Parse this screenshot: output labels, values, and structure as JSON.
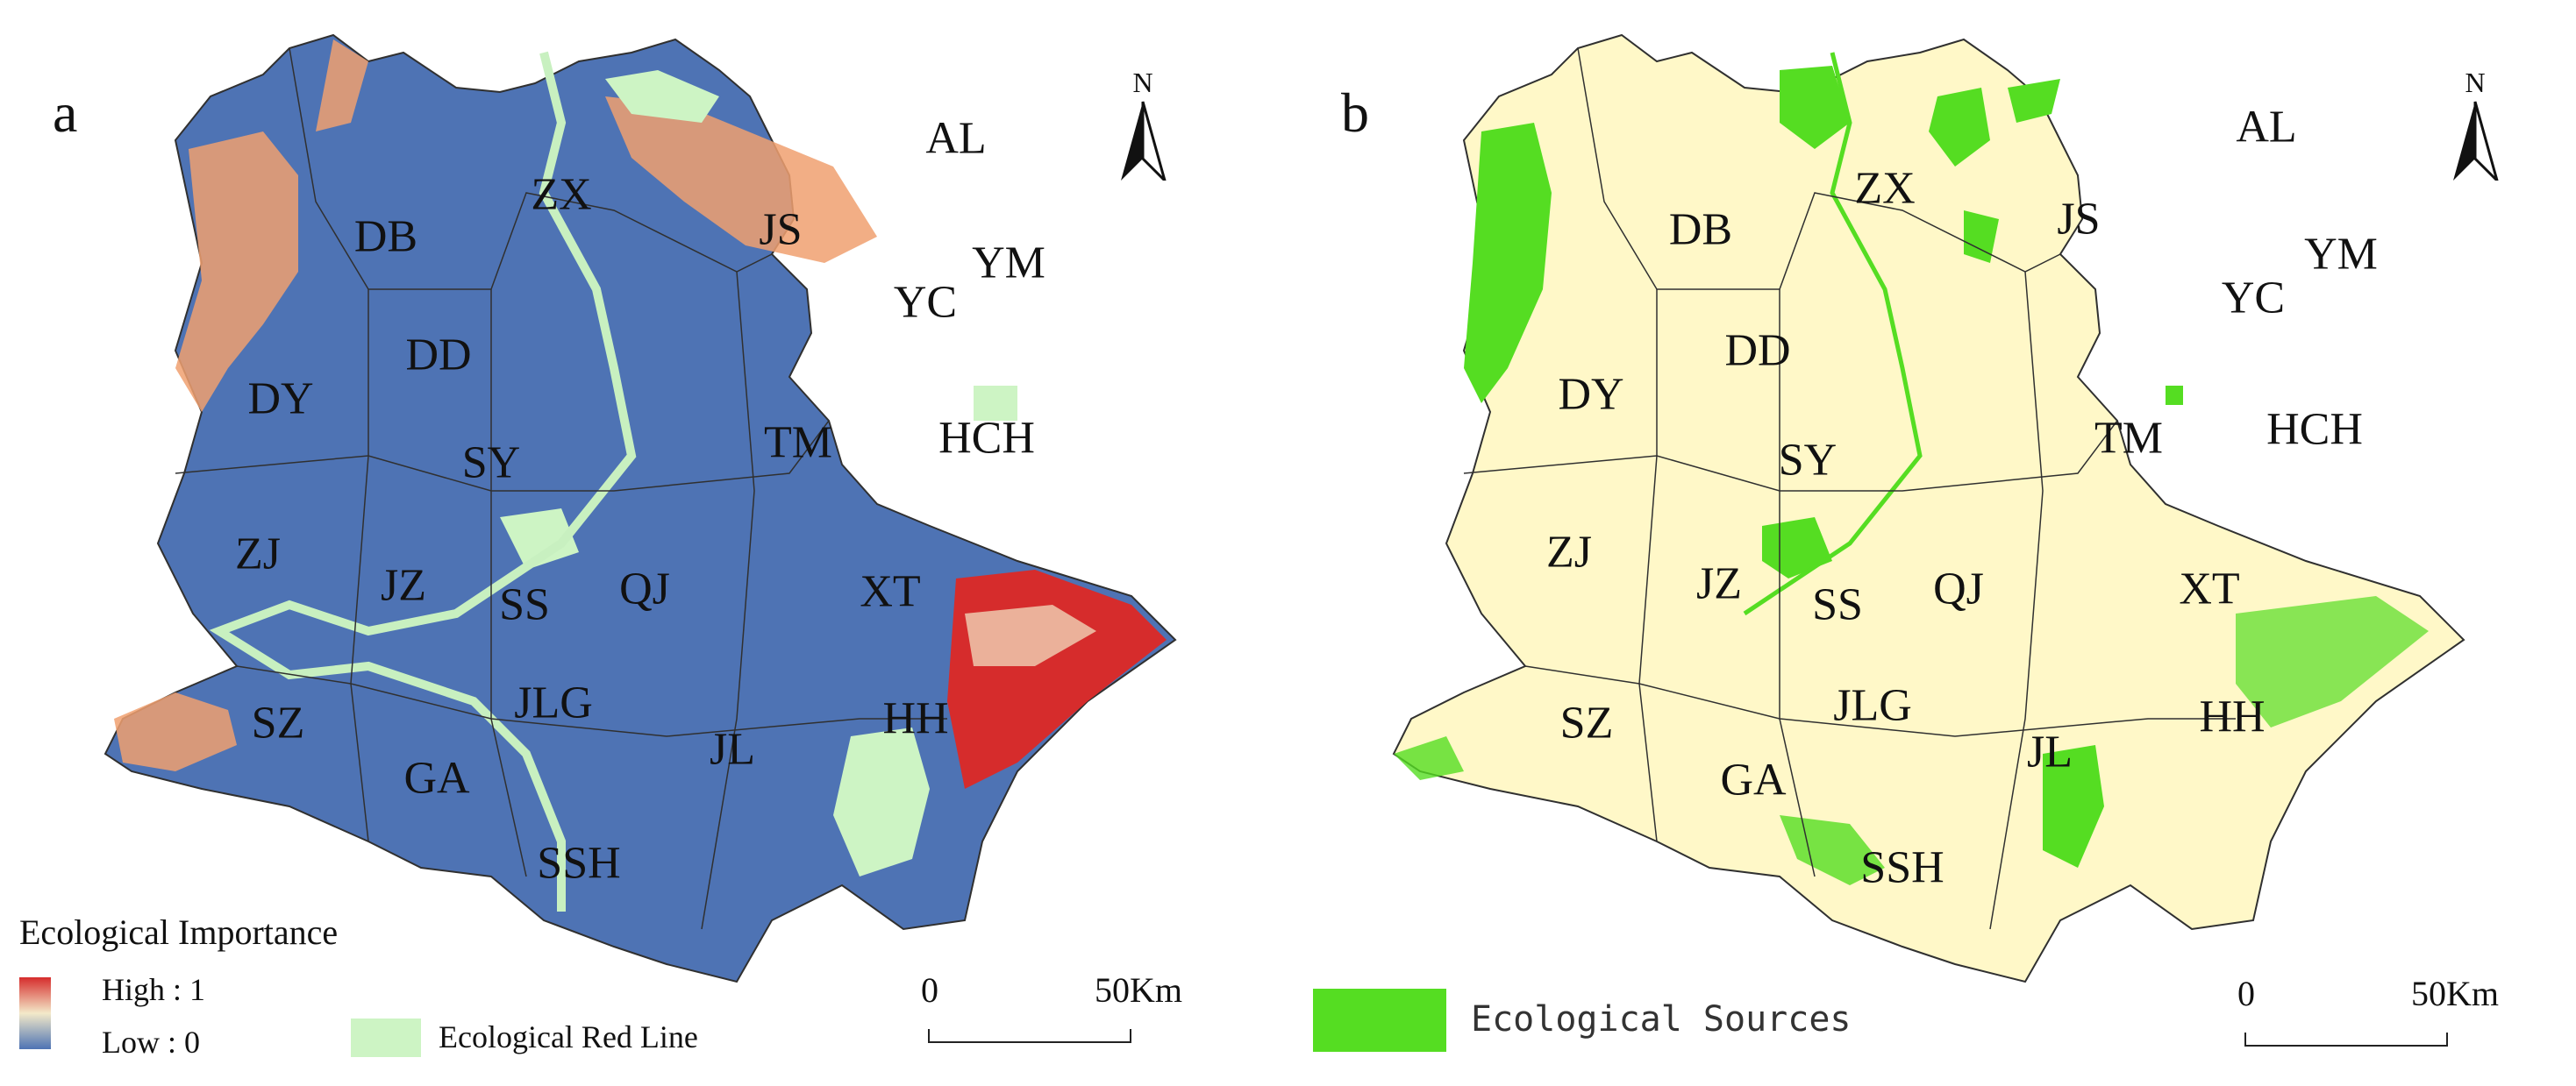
{
  "colors": {
    "importance_high": "#d62c2c",
    "importance_mid": "#f3e9c9",
    "importance_low": "#4e73b4",
    "orange_patch": "#f0a070",
    "red_line": "#cdf4c4",
    "sources": "#55dd22",
    "base_b": "#fff8c8",
    "boundary": "#303030",
    "river": "#c8f0c0"
  },
  "panel_a": {
    "letter": "a",
    "north_label": "N",
    "legend": {
      "title": "Ecological Importance",
      "high_label": "High : 1",
      "low_label": "Low : 0",
      "red_line_label": "Ecological Red Line"
    },
    "scale": {
      "zero": "0",
      "max": "50",
      "unit": "Km"
    },
    "regions": [
      "ZX",
      "JS",
      "AL",
      "DB",
      "YM",
      "YC",
      "DD",
      "DY",
      "TM",
      "HCH",
      "SY",
      "ZJ",
      "JZ",
      "SS",
      "QJ",
      "XT",
      "SZ",
      "JLG",
      "HH",
      "JL",
      "GA",
      "SSH"
    ]
  },
  "panel_b": {
    "letter": "b",
    "north_label": "N",
    "legend": {
      "sources_label": "Ecological Sources"
    },
    "scale": {
      "zero": "0",
      "max": "50",
      "unit": "Km"
    },
    "regions": [
      "AL",
      "ZX",
      "JS",
      "DB",
      "YM",
      "YC",
      "DD",
      "DY",
      "TM",
      "HCH",
      "SY",
      "ZJ",
      "JZ",
      "SS",
      "QJ",
      "XT",
      "SZ",
      "JLG",
      "HH",
      "JL",
      "GA",
      "SSH"
    ]
  }
}
